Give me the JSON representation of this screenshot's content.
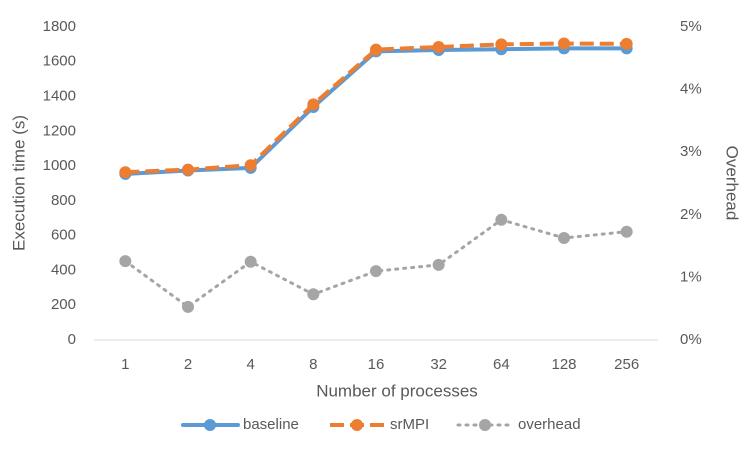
{
  "chart_data": {
    "type": "line",
    "x_label": "Number of processes",
    "y_label": "Execution time (s)",
    "y2_label": "Overhead",
    "categories": [
      "1",
      "2",
      "4",
      "8",
      "16",
      "32",
      "64",
      "128",
      "256"
    ],
    "series": [
      {
        "name": "baseline",
        "color": "#5b9bd5",
        "dash": "solid",
        "values": [
          955,
          975,
          990,
          1340,
          1660,
          1668,
          1672,
          1677,
          1677
        ]
      },
      {
        "name": "srMPI",
        "color": "#ed7d31",
        "dash": "dashed",
        "values": [
          965,
          980,
          1005,
          1355,
          1670,
          1685,
          1700,
          1705,
          1703
        ]
      },
      {
        "name": "overhead",
        "color": "#a5a5a5",
        "dash": "dotted",
        "axis": "y2",
        "values": [
          1.26,
          0.53,
          1.25,
          0.73,
          1.1,
          1.2,
          1.92,
          1.63,
          1.73
        ]
      }
    ],
    "ylim": [
      0,
      1800
    ],
    "yticks": [
      0,
      200,
      400,
      600,
      800,
      1000,
      1200,
      1400,
      1600,
      1800
    ],
    "y2lim": [
      0,
      5
    ],
    "y2ticks": [
      {
        "value": 0,
        "label": "0%"
      },
      {
        "value": 1,
        "label": "1%"
      },
      {
        "value": 2,
        "label": "2%"
      },
      {
        "value": 3,
        "label": "3%"
      },
      {
        "value": 4,
        "label": "4%"
      },
      {
        "value": 5,
        "label": "5%"
      }
    ],
    "grid": false,
    "legend": "bottom"
  }
}
